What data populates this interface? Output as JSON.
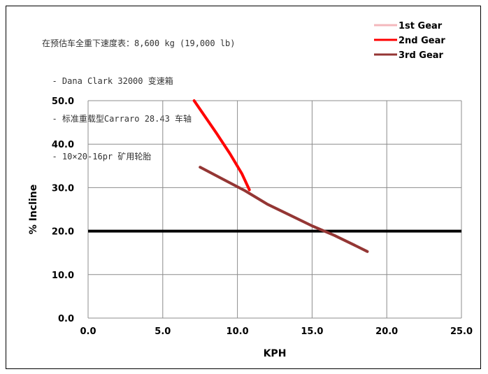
{
  "notes": [
    "在预估车全重下速度表：8,600 kg (19,000 lb)",
    "  - Dana Clark 32000 变速箱",
    "  - 标准重载型Carraro 28.43 车轴",
    "  - 10×20-16pr 矿用轮胎"
  ],
  "chart_data": {
    "type": "line",
    "title": "",
    "xlabel": "KPH",
    "ylabel": "% Incline",
    "xlim": [
      0,
      25
    ],
    "ylim": [
      0,
      50
    ],
    "x_ticks": [
      "0.0",
      "5.0",
      "10.0",
      "15.0",
      "20.0",
      "25.0"
    ],
    "y_ticks": [
      "0.0",
      "10.0",
      "20.0",
      "30.0",
      "40.0",
      "50.0"
    ],
    "grid": true,
    "legend_position": "top-right",
    "series": [
      {
        "name": "1st Gear",
        "color": "#f4b8bd",
        "points": []
      },
      {
        "name": "2nd Gear",
        "color": "#ff0000",
        "points": [
          [
            7.1,
            50.0
          ],
          [
            7.8,
            46.5
          ],
          [
            8.6,
            42.5
          ],
          [
            9.5,
            37.8
          ],
          [
            10.3,
            33.2
          ],
          [
            10.8,
            29.5
          ]
        ]
      },
      {
        "name": "3rd Gear",
        "color": "#943634",
        "points": [
          [
            7.5,
            34.7
          ],
          [
            9.0,
            32.0
          ],
          [
            10.5,
            29.3
          ],
          [
            12.0,
            26.2
          ],
          [
            13.5,
            23.7
          ],
          [
            15.0,
            21.2
          ],
          [
            16.5,
            19.0
          ],
          [
            18.0,
            16.5
          ],
          [
            18.7,
            15.3
          ]
        ]
      }
    ],
    "reference_line": {
      "y": 20.0,
      "color": "#000000"
    }
  }
}
